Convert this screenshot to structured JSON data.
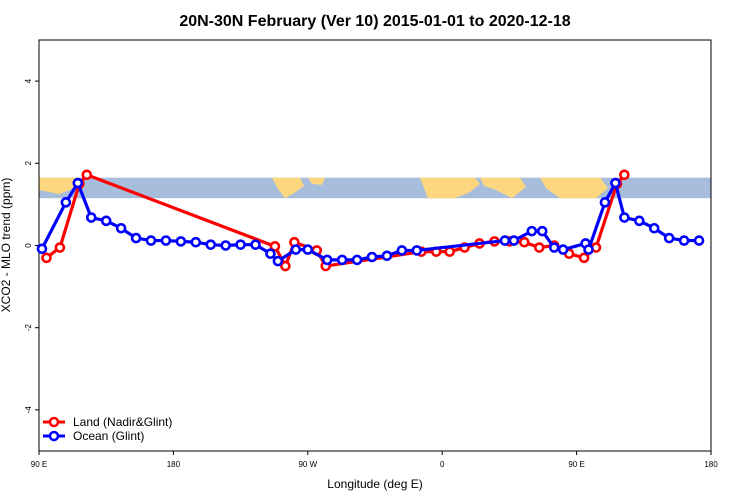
{
  "chart_data": {
    "type": "line",
    "title": "20N-30N February (Ver 10)   2015-01-01 to 2020-12-18",
    "xlabel": "Longitude (deg E)",
    "ylabel": "XCO2 - MLO trend (ppm)",
    "xlim": [
      90,
      540
    ],
    "ylim": [
      -5,
      5
    ],
    "x_ticks": [
      {
        "value": 90,
        "label": "90 E"
      },
      {
        "value": 180,
        "label": "180"
      },
      {
        "value": 270,
        "label": "90 W"
      },
      {
        "value": 360,
        "label": "0"
      },
      {
        "value": 450,
        "label": "90 E"
      },
      {
        "value": 540,
        "label": "180"
      }
    ],
    "y_ticks": [
      {
        "value": -4,
        "label": "-4"
      },
      {
        "value": -2,
        "label": "-2"
      },
      {
        "value": 0,
        "label": "0"
      },
      {
        "value": 2,
        "label": "2"
      },
      {
        "value": 4,
        "label": "4"
      }
    ],
    "map_band": {
      "y_bottom": 1.15,
      "y_top": 1.65,
      "ocean_color": "#a6bddb",
      "land_color": "#fdd77f"
    },
    "legend_position": "bottom-left",
    "series": [
      {
        "name": "Land (Nadir&Glint)",
        "color": "#ff0000",
        "points": [
          {
            "x": 95,
            "y": -0.3
          },
          {
            "x": 104,
            "y": -0.05
          },
          {
            "x": 117,
            "y": 1.5
          },
          {
            "x": 122,
            "y": 1.72
          },
          {
            "x": 248,
            "y": -0.02
          },
          {
            "x": 255,
            "y": -0.5
          },
          {
            "x": 261,
            "y": 0.08
          },
          {
            "x": 276,
            "y": -0.12
          },
          {
            "x": 282,
            "y": -0.5
          },
          {
            "x": 346,
            "y": -0.15
          },
          {
            "x": 356,
            "y": -0.15
          },
          {
            "x": 365,
            "y": -0.15
          },
          {
            "x": 375,
            "y": -0.05
          },
          {
            "x": 385,
            "y": 0.05
          },
          {
            "x": 395,
            "y": 0.1
          },
          {
            "x": 405,
            "y": 0.1
          },
          {
            "x": 415,
            "y": 0.08
          },
          {
            "x": 425,
            "y": -0.05
          },
          {
            "x": 435,
            "y": 0.0
          },
          {
            "x": 445,
            "y": -0.2
          },
          {
            "x": 455,
            "y": -0.3
          },
          {
            "x": 463,
            "y": -0.05
          },
          {
            "x": 477,
            "y": 1.5
          },
          {
            "x": 482,
            "y": 1.72
          }
        ]
      },
      {
        "name": "Ocean (Glint)",
        "color": "#0000ff",
        "points": [
          {
            "x": 92,
            "y": -0.08
          },
          {
            "x": 108,
            "y": 1.05
          },
          {
            "x": 116,
            "y": 1.52
          },
          {
            "x": 125,
            "y": 0.68
          },
          {
            "x": 135,
            "y": 0.6
          },
          {
            "x": 145,
            "y": 0.42
          },
          {
            "x": 155,
            "y": 0.18
          },
          {
            "x": 165,
            "y": 0.12
          },
          {
            "x": 175,
            "y": 0.12
          },
          {
            "x": 185,
            "y": 0.1
          },
          {
            "x": 195,
            "y": 0.08
          },
          {
            "x": 205,
            "y": 0.02
          },
          {
            "x": 215,
            "y": 0.0
          },
          {
            "x": 225,
            "y": 0.02
          },
          {
            "x": 235,
            "y": 0.02
          },
          {
            "x": 245,
            "y": -0.2
          },
          {
            "x": 250,
            "y": -0.38
          },
          {
            "x": 262,
            "y": -0.1
          },
          {
            "x": 270,
            "y": -0.1
          },
          {
            "x": 283,
            "y": -0.35
          },
          {
            "x": 293,
            "y": -0.35
          },
          {
            "x": 303,
            "y": -0.35
          },
          {
            "x": 313,
            "y": -0.28
          },
          {
            "x": 323,
            "y": -0.25
          },
          {
            "x": 333,
            "y": -0.12
          },
          {
            "x": 343,
            "y": -0.12
          },
          {
            "x": 402,
            "y": 0.12
          },
          {
            "x": 408,
            "y": 0.12
          },
          {
            "x": 420,
            "y": 0.35
          },
          {
            "x": 427,
            "y": 0.35
          },
          {
            "x": 435,
            "y": -0.05
          },
          {
            "x": 441,
            "y": -0.1
          },
          {
            "x": 456,
            "y": 0.05
          },
          {
            "x": 458,
            "y": -0.1
          },
          {
            "x": 469,
            "y": 1.05
          },
          {
            "x": 476,
            "y": 1.52
          },
          {
            "x": 482,
            "y": 0.68
          },
          {
            "x": 492,
            "y": 0.6
          },
          {
            "x": 502,
            "y": 0.42
          },
          {
            "x": 512,
            "y": 0.18
          },
          {
            "x": 522,
            "y": 0.12
          },
          {
            "x": 532,
            "y": 0.12
          }
        ]
      }
    ]
  }
}
